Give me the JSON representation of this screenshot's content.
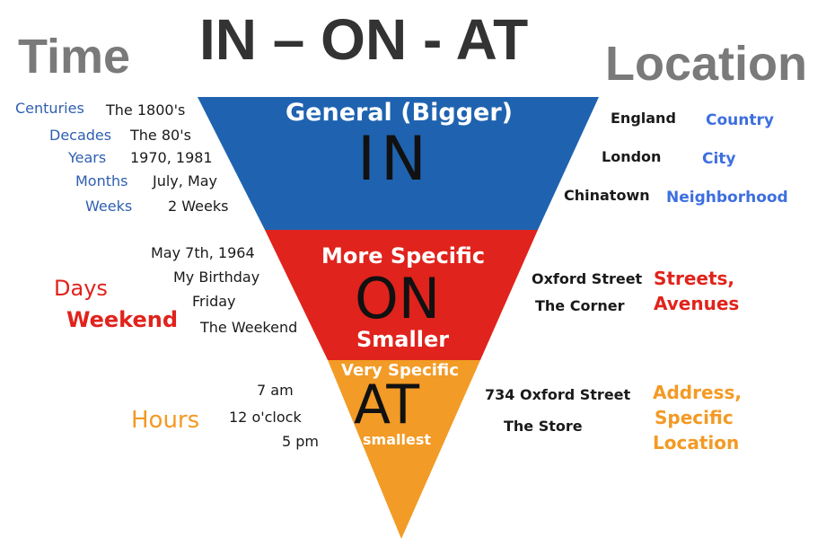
{
  "title": "IN – ON - AT",
  "left_header": "Time",
  "right_header": "Location",
  "in": {
    "top_label": "General (Bigger)",
    "word": "IN",
    "time_units": [
      "Centuries",
      "Decades",
      "Years",
      "Months",
      "Weeks"
    ],
    "time_examples": [
      "The 1800's",
      "The 80's",
      "1970, 1981",
      "July, May",
      "2 Weeks"
    ],
    "places": [
      "England",
      "London",
      "Chinatown"
    ],
    "place_types": [
      "Country",
      "City",
      "Neighborhood"
    ]
  },
  "on": {
    "top_label": "More Specific",
    "word": "ON",
    "bottom_label": "Smaller",
    "time_unit_1": "Days",
    "time_unit_2": "Weekend",
    "time_examples": [
      "May 7th, 1964",
      "My Birthday",
      "Friday",
      "The Weekend"
    ],
    "places": [
      "Oxford Street",
      "The Corner"
    ],
    "place_type_1": "Streets,",
    "place_type_2": "Avenues"
  },
  "at": {
    "top_label": "Very Specific",
    "word": "AT",
    "bottom_label": "smallest",
    "time_unit": "Hours",
    "time_examples": [
      "7 am",
      "12 o'clock",
      "5 pm"
    ],
    "places": [
      "734 Oxford Street",
      "The Store"
    ],
    "place_type_lines": [
      "Address,",
      "Specific",
      "Location"
    ]
  },
  "colors": {
    "in_fill": "#1f63b0",
    "on_fill": "#e0231c",
    "at_fill": "#f29b26"
  }
}
